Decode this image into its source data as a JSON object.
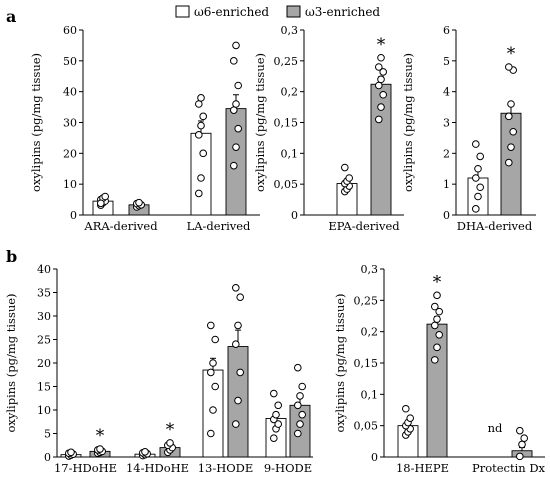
{
  "legend": [
    {
      "name": "ω6-enriched",
      "color": "#ffffff"
    },
    {
      "name": "ω3-enriched",
      "color": "#a6a6a6"
    }
  ],
  "panel_labels": {
    "a": "a",
    "b": "b"
  },
  "chart_data": [
    {
      "type": "bar",
      "panel": "a",
      "ylabel": "oxylipins (pg/mg tissue)",
      "ylim": [
        0,
        60
      ],
      "yticks": [
        "0",
        "10",
        "20",
        "30",
        "40",
        "50",
        "60"
      ],
      "categories": [
        "ARA-derived",
        "LA-derived"
      ],
      "series": [
        {
          "name": "ω6-enriched",
          "values": [
            4.5,
            26.5
          ],
          "errors": [
            0.6,
            4.0
          ],
          "points": [
            [
              3.2,
              4,
              4.5,
              5,
              5.5,
              6,
              3.8
            ],
            [
              7,
              12,
              20,
              26,
              29,
              32,
              36,
              38
            ]
          ]
        },
        {
          "name": "ω3-enriched",
          "values": [
            3.3,
            34.5
          ],
          "errors": [
            0.5,
            4.5
          ],
          "points": [
            [
              2.6,
              3,
              3.3,
              3.7,
              4
            ],
            [
              16,
              22,
              28,
              34,
              36,
              42,
              50,
              55
            ]
          ]
        }
      ],
      "significant": [
        false,
        false
      ]
    },
    {
      "type": "bar",
      "panel": "a",
      "ylabel": "oxylipins (pg/mg tissue)",
      "ylim": [
        0,
        0.3
      ],
      "yticks": [
        "0",
        "0,05",
        "0,1",
        "0,15",
        "0,2",
        "0,25",
        "0,3"
      ],
      "categories": [
        "EPA-derived"
      ],
      "series": [
        {
          "name": "ω6-enriched",
          "values": [
            0.051
          ],
          "errors": [
            0.006
          ],
          "points": [
            [
              0.038,
              0.042,
              0.047,
              0.051,
              0.055,
              0.06,
              0.077
            ]
          ]
        },
        {
          "name": "ω3-enriched",
          "values": [
            0.212
          ],
          "errors": [
            0.012
          ],
          "points": [
            [
              0.155,
              0.175,
              0.195,
              0.21,
              0.22,
              0.232,
              0.24,
              0.255
            ]
          ]
        }
      ],
      "significant": [
        true
      ]
    },
    {
      "type": "bar",
      "panel": "a",
      "ylabel": "oxylipins (pg/mg tissue)",
      "ylim": [
        0,
        6
      ],
      "yticks": [
        "0",
        "1",
        "2",
        "3",
        "4",
        "5",
        "6"
      ],
      "categories": [
        "DHA-derived"
      ],
      "series": [
        {
          "name": "ω6-enriched",
          "values": [
            1.2
          ],
          "errors": [
            0.3
          ],
          "points": [
            [
              0.2,
              0.6,
              0.9,
              1.2,
              1.5,
              1.9,
              2.3
            ]
          ]
        },
        {
          "name": "ω3-enriched",
          "values": [
            3.3
          ],
          "errors": [
            0.35
          ],
          "points": [
            [
              1.7,
              2.2,
              2.7,
              3.2,
              3.6,
              4.7,
              4.8
            ]
          ]
        }
      ],
      "significant": [
        true
      ]
    },
    {
      "type": "bar",
      "panel": "b",
      "ylabel": "oxylipins (pg/mg tissue)",
      "ylim": [
        0,
        40
      ],
      "yticks": [
        "0",
        "5",
        "10",
        "15",
        "20",
        "25",
        "30",
        "35",
        "40"
      ],
      "categories": [
        "17-HDoHE",
        "14-HDoHE",
        "13-HODE",
        "9-HODE"
      ],
      "series": [
        {
          "name": "ω6-enriched",
          "values": [
            0.5,
            0.6,
            18.5,
            8.2
          ],
          "errors": [
            0.15,
            0.15,
            2.5,
            1.2
          ],
          "points": [
            [
              0.2,
              0.4,
              0.6,
              0.8,
              1.0
            ],
            [
              0.3,
              0.5,
              0.7,
              0.9,
              1.1
            ],
            [
              5,
              10,
              15,
              18,
              20,
              25,
              28
            ],
            [
              4,
              6,
              7,
              8,
              9,
              11,
              13.5
            ]
          ]
        },
        {
          "name": "ω3-enriched",
          "values": [
            1.2,
            2.0,
            23.5,
            11.0
          ],
          "errors": [
            0.15,
            0.3,
            3.5,
            1.8
          ],
          "points": [
            [
              0.8,
              1.0,
              1.2,
              1.5,
              1.7
            ],
            [
              1.0,
              1.5,
              2.0,
              2.5,
              3.0
            ],
            [
              7,
              12,
              18,
              24,
              28,
              34,
              36
            ],
            [
              5,
              7,
              9,
              11,
              13,
              15,
              19
            ]
          ]
        }
      ],
      "significant": [
        true,
        true,
        false,
        false
      ]
    },
    {
      "type": "bar",
      "panel": "b",
      "ylabel": "oxylipins (pg/mg tissue)",
      "ylim": [
        0,
        0.3
      ],
      "yticks": [
        "0",
        "0,05",
        "0,1",
        "0,15",
        "0,2",
        "0,25",
        "0,3"
      ],
      "categories": [
        "18-HEPE",
        "Protectin Dx"
      ],
      "series": [
        {
          "name": "ω6-enriched",
          "values": [
            0.05,
            0
          ],
          "errors": [
            0.006,
            0
          ],
          "points": [
            [
              0.035,
              0.04,
              0.045,
              0.05,
              0.055,
              0.062,
              0.077
            ],
            []
          ]
        },
        {
          "name": "ω3-enriched",
          "values": [
            0.212,
            0.01
          ],
          "errors": [
            0.012,
            0.005
          ],
          "points": [
            [
              0.155,
              0.175,
              0.195,
              0.21,
              0.22,
              0.232,
              0.24,
              0.258
            ],
            [
              0.001,
              0.02,
              0.03,
              0.042
            ]
          ]
        }
      ],
      "significant": [
        true,
        false
      ],
      "annotations": [
        "nd"
      ]
    }
  ]
}
